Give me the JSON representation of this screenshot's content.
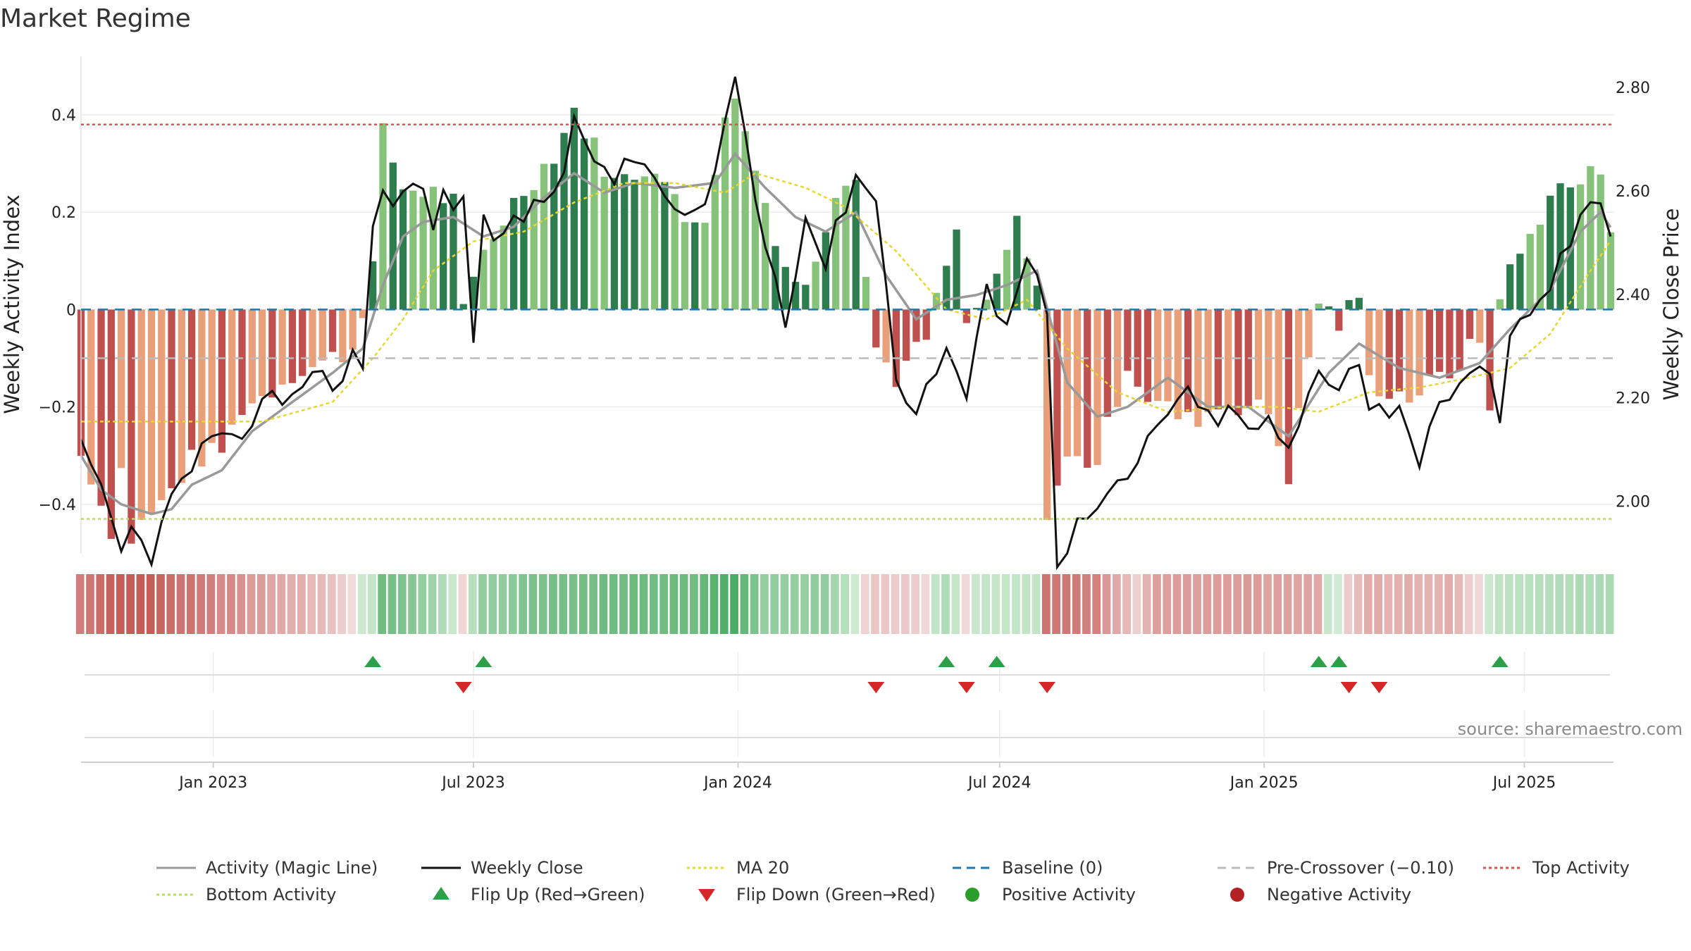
{
  "chart_data": {
    "type": "bar",
    "title": "Market Regime",
    "ylabel_left": "Weekly Activity Index",
    "ylabel_right": "Weekly Close Price",
    "ylim_left": [
      -0.5,
      0.52
    ],
    "ylim_right": [
      1.9,
      2.86
    ],
    "yticks_left": [
      0.4,
      0.2,
      0,
      -0.2,
      -0.4
    ],
    "yticks_left_labels": [
      "0.4",
      "0.2",
      "0",
      "−0.2",
      "−0.4"
    ],
    "yticks_right": [
      2.8,
      2.6,
      2.4,
      2.2,
      2.0
    ],
    "yticks_right_labels": [
      "2.80",
      "2.60",
      "2.40",
      "2.20",
      "2.00"
    ],
    "x_range": [
      "2022-10-01",
      "2025-09-01"
    ],
    "x_ticks": [
      {
        "date": "2023-01-01",
        "label": "Jan 2023"
      },
      {
        "date": "2023-07-01",
        "label": "Jul 2023"
      },
      {
        "date": "2024-01-01",
        "label": "Jan 2024"
      },
      {
        "date": "2024-07-01",
        "label": "Jul 2024"
      },
      {
        "date": "2025-01-01",
        "label": "Jan 2025"
      },
      {
        "date": "2025-07-01",
        "label": "Jul 2025"
      }
    ],
    "reference_lines": {
      "baseline": 0,
      "pre_crossover": -0.1,
      "top_activity": 0.38,
      "bottom_activity": -0.43
    },
    "anchors": {
      "activity_bars": [
        [
          "2022-10-01",
          -0.3
        ],
        [
          "2022-10-08",
          -0.34
        ],
        [
          "2022-10-15",
          -0.4
        ],
        [
          "2022-10-22",
          -0.45
        ],
        [
          "2022-10-29",
          -0.33
        ],
        [
          "2022-11-05",
          -0.47
        ],
        [
          "2022-11-12",
          -0.44
        ],
        [
          "2022-11-19",
          -0.42
        ],
        [
          "2022-11-26",
          -0.4
        ],
        [
          "2022-12-03",
          -0.37
        ],
        [
          "2022-12-17",
          -0.31
        ],
        [
          "2023-01-07",
          -0.29
        ],
        [
          "2023-01-21",
          -0.2
        ],
        [
          "2023-02-04",
          -0.18
        ],
        [
          "2023-02-25",
          -0.13
        ],
        [
          "2023-03-18",
          -0.11
        ],
        [
          "2023-04-08",
          -0.08
        ],
        [
          "2023-04-22",
          0.09
        ],
        [
          "2023-04-29",
          0.36
        ],
        [
          "2023-05-13",
          0.25
        ],
        [
          "2023-06-03",
          0.24
        ],
        [
          "2023-06-17",
          0.22
        ],
        [
          "2023-06-24",
          -0.01
        ],
        [
          "2023-07-08",
          0.12
        ],
        [
          "2023-07-29",
          0.22
        ],
        [
          "2023-08-26",
          0.32
        ],
        [
          "2023-09-09",
          0.41
        ],
        [
          "2023-09-16",
          0.37
        ],
        [
          "2023-10-07",
          0.26
        ],
        [
          "2023-11-04",
          0.3
        ],
        [
          "2023-11-25",
          0.18
        ],
        [
          "2023-12-09",
          0.2
        ],
        [
          "2023-12-23",
          0.38
        ],
        [
          "2023-12-30",
          0.45
        ],
        [
          "2024-01-06",
          0.36
        ],
        [
          "2024-01-20",
          0.22
        ],
        [
          "2024-02-03",
          0.09
        ],
        [
          "2024-02-17",
          0.04
        ],
        [
          "2024-03-09",
          0.25
        ],
        [
          "2024-03-23",
          0.29
        ],
        [
          "2024-03-30",
          0.07
        ],
        [
          "2024-04-06",
          -0.08
        ],
        [
          "2024-04-20",
          -0.14
        ],
        [
          "2024-05-11",
          -0.06
        ],
        [
          "2024-05-25",
          0.09
        ],
        [
          "2024-06-01",
          0.15
        ],
        [
          "2024-06-08",
          -0.03
        ],
        [
          "2024-06-29",
          0.05
        ],
        [
          "2024-07-13",
          0.18
        ],
        [
          "2024-07-27",
          0.03
        ],
        [
          "2024-08-03",
          -0.41
        ],
        [
          "2024-08-17",
          -0.31
        ],
        [
          "2024-09-07",
          -0.31
        ],
        [
          "2024-09-28",
          -0.11
        ],
        [
          "2024-10-12",
          -0.18
        ],
        [
          "2024-11-09",
          -0.23
        ],
        [
          "2024-12-07",
          -0.19
        ],
        [
          "2025-01-04",
          -0.21
        ],
        [
          "2025-01-18",
          -0.34
        ],
        [
          "2025-02-08",
          0.02
        ],
        [
          "2025-02-22",
          -0.03
        ],
        [
          "2025-03-08",
          0.03
        ],
        [
          "2025-03-15",
          -0.15
        ],
        [
          "2025-04-12",
          -0.18
        ],
        [
          "2025-05-10",
          -0.13
        ],
        [
          "2025-05-31",
          -0.06
        ],
        [
          "2025-06-07",
          -0.21
        ],
        [
          "2025-06-14",
          0.04
        ],
        [
          "2025-07-05",
          0.15
        ],
        [
          "2025-07-19",
          0.24
        ],
        [
          "2025-08-09",
          0.26
        ],
        [
          "2025-08-23",
          0.29
        ],
        [
          "2025-09-01",
          0.15
        ]
      ],
      "weekly_close": [
        [
          "2022-10-01",
          2.1
        ],
        [
          "2022-10-15",
          2.01
        ],
        [
          "2022-10-29",
          1.9
        ],
        [
          "2022-11-05",
          1.94
        ],
        [
          "2022-11-19",
          1.9
        ],
        [
          "2022-12-03",
          2.0
        ],
        [
          "2022-12-24",
          2.1
        ],
        [
          "2023-01-14",
          2.11
        ],
        [
          "2023-02-04",
          2.19
        ],
        [
          "2023-02-25",
          2.21
        ],
        [
          "2023-03-11",
          2.25
        ],
        [
          "2023-04-01",
          2.23
        ],
        [
          "2023-04-08",
          2.28
        ],
        [
          "2023-04-15",
          2.26
        ],
        [
          "2023-04-22",
          2.52
        ],
        [
          "2023-04-29",
          2.62
        ],
        [
          "2023-05-06",
          2.55
        ],
        [
          "2023-05-13",
          2.6
        ],
        [
          "2023-05-20",
          2.63
        ],
        [
          "2023-06-03",
          2.54
        ],
        [
          "2023-06-10",
          2.61
        ],
        [
          "2023-06-17",
          2.55
        ],
        [
          "2023-06-24",
          2.6
        ],
        [
          "2023-07-01",
          2.33
        ],
        [
          "2023-07-08",
          2.53
        ],
        [
          "2023-07-22",
          2.51
        ],
        [
          "2023-08-05",
          2.55
        ],
        [
          "2023-08-19",
          2.6
        ],
        [
          "2023-09-02",
          2.64
        ],
        [
          "2023-09-09",
          2.73
        ],
        [
          "2023-09-16",
          2.68
        ],
        [
          "2023-10-07",
          2.63
        ],
        [
          "2023-10-28",
          2.66
        ],
        [
          "2023-11-18",
          2.55
        ],
        [
          "2023-12-09",
          2.55
        ],
        [
          "2023-12-23",
          2.73
        ],
        [
          "2023-12-30",
          2.83
        ],
        [
          "2024-01-13",
          2.58
        ],
        [
          "2024-02-03",
          2.36
        ],
        [
          "2024-02-17",
          2.55
        ],
        [
          "2024-03-02",
          2.46
        ],
        [
          "2024-03-23",
          2.64
        ],
        [
          "2024-04-06",
          2.58
        ],
        [
          "2024-04-20",
          2.25
        ],
        [
          "2024-05-04",
          2.17
        ],
        [
          "2024-05-25",
          2.3
        ],
        [
          "2024-06-08",
          2.2
        ],
        [
          "2024-06-22",
          2.4
        ],
        [
          "2024-07-06",
          2.36
        ],
        [
          "2024-07-20",
          2.47
        ],
        [
          "2024-08-03",
          2.38
        ],
        [
          "2024-08-10",
          1.89
        ],
        [
          "2024-08-24",
          1.95
        ],
        [
          "2024-09-14",
          2.0
        ],
        [
          "2024-09-28",
          2.04
        ],
        [
          "2024-10-26",
          2.18
        ],
        [
          "2024-11-09",
          2.2
        ],
        [
          "2024-11-23",
          2.16
        ],
        [
          "2024-12-07",
          2.17
        ],
        [
          "2024-12-21",
          2.14
        ],
        [
          "2025-01-04",
          2.15
        ],
        [
          "2025-01-18",
          2.09
        ],
        [
          "2025-02-08",
          2.26
        ],
        [
          "2025-02-22",
          2.23
        ],
        [
          "2025-03-08",
          2.28
        ],
        [
          "2025-03-15",
          2.17
        ],
        [
          "2025-04-05",
          2.19
        ],
        [
          "2025-04-19",
          2.08
        ],
        [
          "2025-05-10",
          2.22
        ],
        [
          "2025-05-24",
          2.24
        ],
        [
          "2025-06-07",
          2.24
        ],
        [
          "2025-06-14",
          2.17
        ],
        [
          "2025-06-21",
          2.33
        ],
        [
          "2025-07-05",
          2.35
        ],
        [
          "2025-07-19",
          2.42
        ],
        [
          "2025-08-09",
          2.55
        ],
        [
          "2025-08-23",
          2.57
        ],
        [
          "2025-09-01",
          2.52
        ]
      ],
      "activity_magic_line": [
        [
          "2022-10-01",
          -0.3
        ],
        [
          "2022-10-15",
          -0.37
        ],
        [
          "2022-10-29",
          -0.4
        ],
        [
          "2022-11-19",
          -0.42
        ],
        [
          "2022-12-03",
          -0.41
        ],
        [
          "2022-12-17",
          -0.36
        ],
        [
          "2023-01-07",
          -0.33
        ],
        [
          "2023-01-28",
          -0.25
        ],
        [
          "2023-02-25",
          -0.19
        ],
        [
          "2023-03-25",
          -0.13
        ],
        [
          "2023-04-15",
          -0.08
        ],
        [
          "2023-04-29",
          0.05
        ],
        [
          "2023-05-13",
          0.15
        ],
        [
          "2023-05-27",
          0.18
        ],
        [
          "2023-06-17",
          0.19
        ],
        [
          "2023-07-08",
          0.15
        ],
        [
          "2023-07-29",
          0.17
        ],
        [
          "2023-08-19",
          0.23
        ],
        [
          "2023-09-09",
          0.28
        ],
        [
          "2023-09-30",
          0.24
        ],
        [
          "2023-10-21",
          0.26
        ],
        [
          "2023-11-18",
          0.25
        ],
        [
          "2023-12-16",
          0.26
        ],
        [
          "2023-12-30",
          0.32
        ],
        [
          "2024-01-20",
          0.25
        ],
        [
          "2024-02-10",
          0.19
        ],
        [
          "2024-03-02",
          0.16
        ],
        [
          "2024-03-23",
          0.2
        ],
        [
          "2024-04-13",
          0.07
        ],
        [
          "2024-05-04",
          -0.02
        ],
        [
          "2024-05-25",
          0.02
        ],
        [
          "2024-06-15",
          0.03
        ],
        [
          "2024-07-06",
          0.05
        ],
        [
          "2024-07-27",
          0.08
        ],
        [
          "2024-08-17",
          -0.15
        ],
        [
          "2024-09-07",
          -0.22
        ],
        [
          "2024-09-28",
          -0.2
        ],
        [
          "2024-10-26",
          -0.14
        ],
        [
          "2024-11-23",
          -0.2
        ],
        [
          "2024-12-21",
          -0.2
        ],
        [
          "2025-01-18",
          -0.26
        ],
        [
          "2025-02-15",
          -0.13
        ],
        [
          "2025-03-08",
          -0.07
        ],
        [
          "2025-04-05",
          -0.12
        ],
        [
          "2025-05-03",
          -0.14
        ],
        [
          "2025-05-31",
          -0.11
        ],
        [
          "2025-06-21",
          -0.04
        ],
        [
          "2025-07-19",
          0.04
        ],
        [
          "2025-08-09",
          0.16
        ],
        [
          "2025-08-23",
          0.2
        ],
        [
          "2025-09-01",
          0.16
        ]
      ],
      "ma20": [
        [
          "2022-10-01",
          -0.23
        ],
        [
          "2022-12-31",
          -0.23
        ],
        [
          "2023-02-04",
          -0.23
        ],
        [
          "2023-03-25",
          -0.19
        ],
        [
          "2023-04-22",
          -0.1
        ],
        [
          "2023-05-13",
          -0.02
        ],
        [
          "2023-06-03",
          0.08
        ],
        [
          "2023-07-01",
          0.14
        ],
        [
          "2023-08-05",
          0.16
        ],
        [
          "2023-09-09",
          0.22
        ],
        [
          "2023-10-14",
          0.26
        ],
        [
          "2023-11-18",
          0.26
        ],
        [
          "2023-12-23",
          0.24
        ],
        [
          "2024-01-13",
          0.28
        ],
        [
          "2024-02-17",
          0.25
        ],
        [
          "2024-03-16",
          0.21
        ],
        [
          "2024-04-20",
          0.12
        ],
        [
          "2024-05-25",
          0.0
        ],
        [
          "2024-06-22",
          -0.02
        ],
        [
          "2024-07-20",
          0.02
        ],
        [
          "2024-08-17",
          -0.08
        ],
        [
          "2024-09-21",
          -0.17
        ],
        [
          "2024-10-26",
          -0.21
        ],
        [
          "2024-12-07",
          -0.2
        ],
        [
          "2025-01-11",
          -0.2
        ],
        [
          "2025-02-08",
          -0.21
        ],
        [
          "2025-03-15",
          -0.17
        ],
        [
          "2025-04-19",
          -0.16
        ],
        [
          "2025-05-24",
          -0.14
        ],
        [
          "2025-06-21",
          -0.12
        ],
        [
          "2025-07-19",
          -0.05
        ],
        [
          "2025-08-16",
          0.08
        ],
        [
          "2025-09-01",
          0.15
        ]
      ],
      "regime_strip": [
        [
          "2022-10-01",
          -0.3
        ],
        [
          "2022-11-05",
          -0.45
        ],
        [
          "2022-12-03",
          -0.37
        ],
        [
          "2023-01-07",
          -0.28
        ],
        [
          "2023-02-18",
          -0.18
        ],
        [
          "2023-03-25",
          -0.1
        ],
        [
          "2023-04-22",
          0.05
        ],
        [
          "2023-04-29",
          0.3
        ],
        [
          "2023-05-27",
          0.2
        ],
        [
          "2023-06-24",
          -0.02
        ],
        [
          "2023-07-08",
          0.18
        ],
        [
          "2023-08-26",
          0.28
        ],
        [
          "2023-10-14",
          0.3
        ],
        [
          "2023-12-02",
          0.3
        ],
        [
          "2023-12-30",
          0.4
        ],
        [
          "2024-01-20",
          0.2
        ],
        [
          "2024-03-02",
          0.18
        ],
        [
          "2024-04-06",
          -0.08
        ],
        [
          "2024-05-04",
          -0.06
        ],
        [
          "2024-05-25",
          0.1
        ],
        [
          "2024-06-08",
          -0.02
        ],
        [
          "2024-06-22",
          0.05
        ],
        [
          "2024-07-27",
          0.05
        ],
        [
          "2024-08-03",
          -0.35
        ],
        [
          "2024-09-07",
          -0.3
        ],
        [
          "2024-10-05",
          -0.05
        ],
        [
          "2024-10-19",
          -0.2
        ],
        [
          "2024-12-07",
          -0.22
        ],
        [
          "2025-02-08",
          -0.18
        ],
        [
          "2025-02-15",
          0.04
        ],
        [
          "2025-03-15",
          -0.15
        ],
        [
          "2025-05-10",
          -0.15
        ],
        [
          "2025-06-14",
          0.06
        ],
        [
          "2025-07-19",
          0.1
        ],
        [
          "2025-09-01",
          0.12
        ]
      ]
    },
    "flip_up": [
      "2023-04-22",
      "2023-07-08",
      "2024-05-25",
      "2024-06-29",
      "2025-02-08",
      "2025-02-22",
      "2025-06-14"
    ],
    "flip_down": [
      "2023-06-24",
      "2024-04-06",
      "2024-06-08",
      "2024-08-03",
      "2025-03-01",
      "2025-03-22"
    ],
    "source_text": "source: sharemaestro.com",
    "colors": {
      "positive_dark": "#2e7d4f",
      "positive_light": "#86c27a",
      "negative_dark": "#c0504d",
      "negative_light": "#e9a07a",
      "weekly_close": "#111111",
      "magic_line": "#999999",
      "ma20": "#e8d630",
      "baseline": "#1f77b4",
      "pre_crossover": "#bbbbbb",
      "top_activity": "#d9534f",
      "bottom_activity": "#b6dd6c",
      "flip_up": "#2ca048",
      "flip_down": "#d62728",
      "positive_activity": "#2a9d2a",
      "negative_activity": "#b22222"
    },
    "legend": [
      {
        "label": "Activity (Magic Line)",
        "kind": "line",
        "color": "#999999",
        "dash": ""
      },
      {
        "label": "Weekly Close",
        "kind": "line",
        "color": "#111111",
        "dash": ""
      },
      {
        "label": "MA 20",
        "kind": "line",
        "color": "#e8d630",
        "dash": "4,4"
      },
      {
        "label": "Baseline (0)",
        "kind": "line",
        "color": "#1f77b4",
        "dash": "12,8"
      },
      {
        "label": "Pre-Crossover (−0.10)",
        "kind": "line",
        "color": "#bbbbbb",
        "dash": "12,8"
      },
      {
        "label": "Top Activity",
        "kind": "line",
        "color": "#d9534f",
        "dash": "4,4"
      },
      {
        "label": "Bottom Activity",
        "kind": "line",
        "color": "#b6dd6c",
        "dash": "4,4"
      },
      {
        "label": "Flip Up (Red→Green)",
        "kind": "tri-up",
        "color": "#2ca048"
      },
      {
        "label": "Flip Down (Green→Red)",
        "kind": "tri-down",
        "color": "#d62728"
      },
      {
        "label": "Positive Activity",
        "kind": "dot",
        "color": "#2a9d2a"
      },
      {
        "label": "Negative Activity",
        "kind": "dot",
        "color": "#b22222"
      }
    ]
  }
}
